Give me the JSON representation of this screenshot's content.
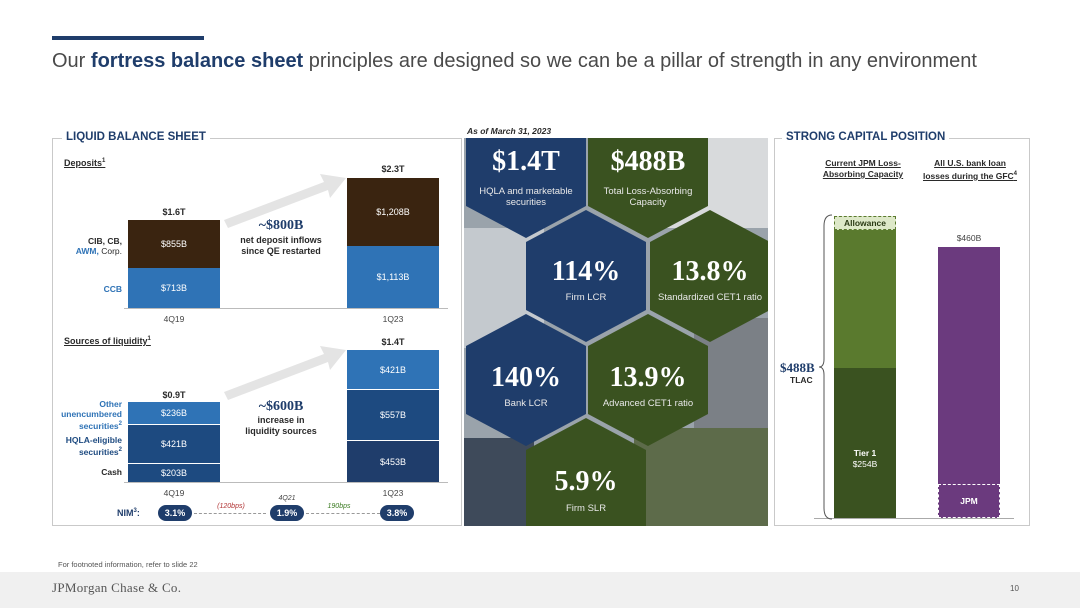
{
  "title": {
    "pre": "Our ",
    "bold": "fortress balance sheet",
    "post": " principles are designed so we can be a pillar of strength in any environment"
  },
  "liquid": {
    "heading": "LIQUID BALANCE SHEET",
    "deposits": {
      "title": "Deposits",
      "sup": "1",
      "bars": [
        {
          "period": "4Q19",
          "total": "$1.6T",
          "segments": [
            {
              "label": "$713B",
              "value": 713
            },
            {
              "label": "$855B",
              "value": 855
            }
          ]
        },
        {
          "period": "1Q23",
          "total": "$2.3T",
          "segments": [
            {
              "label": "$1,113B",
              "value": 1113
            },
            {
              "label": "$1,208B",
              "value": 1208
            }
          ]
        }
      ],
      "row_labels": {
        "top_a": "CIB, CB,",
        "top_b": "AWM,",
        "top_c": " Corp.",
        "bottom": "CCB"
      },
      "annotation": {
        "big": "~$800B",
        "small1": "net deposit inflows",
        "small2": "since QE restarted"
      }
    },
    "sources": {
      "title": "Sources of liquidity",
      "sup": "1",
      "bars": [
        {
          "period": "4Q19",
          "total": "$0.9T",
          "segments": [
            {
              "label": "$203B",
              "value": 203
            },
            {
              "label": "$421B",
              "value": 421
            },
            {
              "label": "$236B",
              "value": 236
            }
          ]
        },
        {
          "period": "1Q23",
          "total": "$1.4T",
          "segments": [
            {
              "label": "$453B",
              "value": 453
            },
            {
              "label": "$557B",
              "value": 557
            },
            {
              "label": "$421B",
              "value": 421
            }
          ]
        }
      ],
      "row_labels": {
        "other1": "Other",
        "other2": "unencumbered",
        "other3": "securities",
        "other_sup": "2",
        "hqla1": "HQLA-eligible",
        "hqla2": "securities",
        "hqla_sup": "2",
        "cash": "Cash"
      },
      "annotation": {
        "big": "~$600B",
        "small1": "increase in",
        "small2": "liquidity sources"
      }
    },
    "nim": {
      "label": "NIM",
      "sup": "3",
      "v1": "3.1%",
      "chg1": "(120bps)",
      "mid_period": "4Q21",
      "v2": "1.9%",
      "chg2": "190bps",
      "v3": "3.8%"
    }
  },
  "hex": {
    "as_of": "As of March 31, 2023",
    "cells": [
      {
        "value": "$1.4T",
        "label1": "HQLA and marketable",
        "label2": "securities"
      },
      {
        "value": "$488B",
        "label1": "Total Loss-Absorbing",
        "label2": "Capacity"
      },
      {
        "value": "114%",
        "label1": "Firm LCR",
        "label2": ""
      },
      {
        "value": "13.8%",
        "label1": "Standardized CET1 ratio",
        "label2": ""
      },
      {
        "value": "140%",
        "label1": "Bank LCR",
        "label2": ""
      },
      {
        "value": "13.9%",
        "label1": "Advanced CET1 ratio",
        "label2": ""
      },
      {
        "value": "5.9%",
        "label1": "Firm SLR",
        "label2": ""
      }
    ]
  },
  "capital": {
    "heading": "STRONG CAPITAL POSITION",
    "col1_1": "Current JPM Loss-",
    "col1_2": "Absorbing Capacity",
    "col2_1": "All U.S. bank loan",
    "col2_2": "losses during the GFC",
    "col2_sup": "4",
    "allowance": "Allowance",
    "tlac_value": "$488B",
    "tlac_label": "TLAC",
    "tier1_label": "Tier 1",
    "tier1_value": "$254B",
    "gfc_value": "$460B",
    "jpm_label": "JPM"
  },
  "chart_data": [
    {
      "type": "bar",
      "title": "Deposits",
      "categories": [
        "4Q19",
        "1Q23"
      ],
      "series": [
        {
          "name": "CCB",
          "values": [
            713,
            1113
          ]
        },
        {
          "name": "CIB, CB, AWM, Corp.",
          "values": [
            855,
            1208
          ]
        }
      ],
      "totals": [
        "$1.6T",
        "$2.3T"
      ]
    },
    {
      "type": "bar",
      "title": "Sources of liquidity",
      "categories": [
        "4Q19",
        "1Q23"
      ],
      "series": [
        {
          "name": "Cash",
          "values": [
            203,
            453
          ]
        },
        {
          "name": "HQLA-eligible securities",
          "values": [
            421,
            557
          ]
        },
        {
          "name": "Other unencumbered securities",
          "values": [
            236,
            421
          ]
        }
      ],
      "totals": [
        "$0.9T",
        "$1.4T"
      ]
    },
    {
      "type": "bar",
      "categories": [
        "Current JPM Loss-Absorbing Capacity",
        "All U.S. bank loan losses during the GFC"
      ],
      "values": [
        488,
        460
      ],
      "tier1": 254
    }
  ],
  "footer": {
    "note": "For footnoted information, refer to slide 22",
    "logo": "JPMorgan Chase & Co.",
    "page": "10"
  },
  "colors": {
    "navy": "#1f3d6b",
    "blue": "#2f73b6",
    "brown": "#3a2410",
    "darkblue": "#1d4a80",
    "green_dark": "#3a5220",
    "green": "#5a7a2e",
    "purple": "#6b3a7e"
  }
}
